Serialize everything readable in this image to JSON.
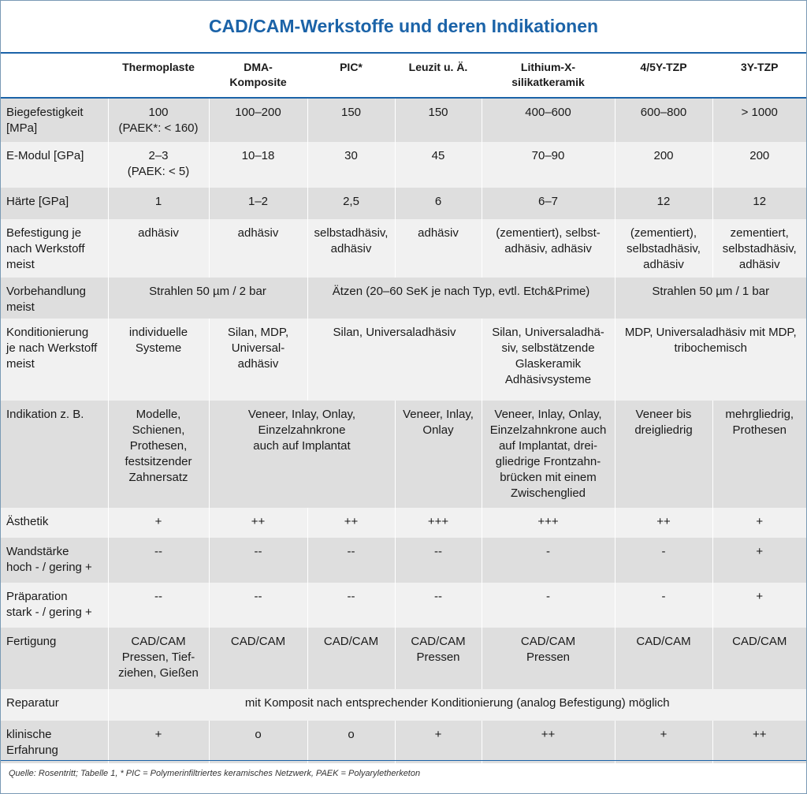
{
  "title": "CAD/CAM-Werkstoffe und deren Indikationen",
  "header": {
    "c1": [
      "Thermoplaste"
    ],
    "c2": [
      "DMA-",
      "Komposite"
    ],
    "c3": [
      "PIC*"
    ],
    "c4": [
      "Leuzit u. Ä."
    ],
    "c5": [
      "Lithium-X-",
      "silikatkeramik"
    ],
    "c6": [
      "4/5Y-TZP"
    ],
    "c7": [
      "3Y-TZP"
    ]
  },
  "rows": {
    "biegefestigkeit": {
      "label": [
        "Biegefestigkeit",
        "[MPa]"
      ],
      "c1": [
        "100",
        "(PAEK*: < 160)"
      ],
      "c2": "100–200",
      "c3": "150",
      "c4": "150",
      "c5": "400–600",
      "c6": "600–800",
      "c7": "> 1000"
    },
    "emodul": {
      "label": [
        "E-Modul [GPa]"
      ],
      "c1": [
        "2–3",
        "(PAEK: < 5)"
      ],
      "c2": "10–18",
      "c3": "30",
      "c4": "45",
      "c5": "70–90",
      "c6": "200",
      "c7": "200"
    },
    "haerte": {
      "label": [
        "Härte [GPa]"
      ],
      "c1": "1",
      "c2": "1–2",
      "c3": "2,5",
      "c4": "6",
      "c5": "6–7",
      "c6": "12",
      "c7": "12"
    },
    "befestigung": {
      "label": [
        "Befestigung je",
        "nach Werkstoff",
        "meist"
      ],
      "c1": [
        "adhäsiv"
      ],
      "c2": [
        "adhäsiv"
      ],
      "c3": [
        "selbstadhäsiv,",
        "adhäsiv"
      ],
      "c4": [
        "adhäsiv"
      ],
      "c5": [
        "(zementiert), selbst-",
        "adhäsiv, adhäsiv"
      ],
      "c6": [
        "(zementiert),",
        "selbstadhäsiv,",
        "adhäsiv"
      ],
      "c7": [
        "zementiert,",
        "selbstadhäsiv,",
        "adhäsiv"
      ]
    },
    "vorbehandlung": {
      "label": [
        "Vorbehandlung",
        "meist"
      ],
      "span1": "Strahlen 50 µm / 2 bar",
      "span2": "Ätzen (20–60 SeK je nach Typ, evtl. Etch&Prime)",
      "span3": "Strahlen 50 µm / 1 bar"
    },
    "konditionierung": {
      "label": [
        "Konditionierung",
        "je nach Werkstoff",
        "meist"
      ],
      "c1": [
        "individuelle",
        "Systeme"
      ],
      "c2": [
        "Silan, MDP,",
        "Universal-",
        "adhäsiv"
      ],
      "span34": [
        "Silan, Universaladhäsiv"
      ],
      "c5": [
        "Silan, Universaladhä-",
        "siv, selbstätzende",
        "Glaskeramik",
        "Adhäsivsysteme"
      ],
      "span67": [
        "MDP, Universaladhäsiv mit MDP,",
        "tribochemisch"
      ]
    },
    "indikation": {
      "label": [
        "Indikation z. B."
      ],
      "c1": [
        "Modelle,",
        "Schienen,",
        "Prothesen,",
        "festsitzender",
        "Zahnersatz"
      ],
      "span23": [
        "Veneer, Inlay, Onlay,",
        "Einzelzahnkrone",
        "auch auf Implantat"
      ],
      "c4": [
        "Veneer, Inlay,",
        "Onlay"
      ],
      "c5": [
        "Veneer, Inlay, Onlay,",
        "Einzelzahnkrone auch",
        "auf Implantat, drei-",
        "gliedrige Frontzahn-",
        "brücken mit einem",
        "Zwischenglied"
      ],
      "c6": [
        "Veneer bis",
        "dreigliedrig"
      ],
      "c7": [
        "mehrgliedrig,",
        "Prothesen"
      ]
    },
    "aesthetik": {
      "label": [
        "Ästhetik"
      ],
      "c1": "+",
      "c2": "++",
      "c3": "++",
      "c4": "+++",
      "c5": "+++",
      "c6": "++",
      "c7": "+"
    },
    "wandstaerke": {
      "label": [
        "Wandstärke",
        "hoch - / gering +"
      ],
      "c1": "--",
      "c2": "--",
      "c3": "--",
      "c4": "--",
      "c5": "-",
      "c6": "-",
      "c7": "+"
    },
    "praeparation": {
      "label": [
        "Präparation",
        "stark - / gering +"
      ],
      "c1": "--",
      "c2": "--",
      "c3": "--",
      "c4": "--",
      "c5": "-",
      "c6": "-",
      "c7": "+"
    },
    "fertigung": {
      "label": [
        "Fertigung"
      ],
      "c1": [
        "CAD/CAM",
        "Pressen, Tief-",
        "ziehen, Gießen"
      ],
      "c2": [
        "CAD/CAM"
      ],
      "c3": [
        "CAD/CAM"
      ],
      "c4": [
        "CAD/CAM",
        "Pressen"
      ],
      "c5": [
        "CAD/CAM",
        "Pressen"
      ],
      "c6": [
        "CAD/CAM"
      ],
      "c7": [
        "CAD/CAM"
      ]
    },
    "reparatur": {
      "label": [
        "Reparatur"
      ],
      "span": "mit Komposit nach entsprechender Konditionierung (analog Befestigung) möglich"
    },
    "erfahrung": {
      "label": [
        "klinische",
        "Erfahrung"
      ],
      "c1": "+",
      "c2": "o",
      "c3": "o",
      "c4": "+",
      "c5": "++",
      "c6": "+",
      "c7": "++"
    }
  },
  "source": "Quelle: Rosentritt; Tabelle 1, * PIC = Polymerinfiltriertes keramisches Netzwerk, PAEK = Polyaryletherketon"
}
